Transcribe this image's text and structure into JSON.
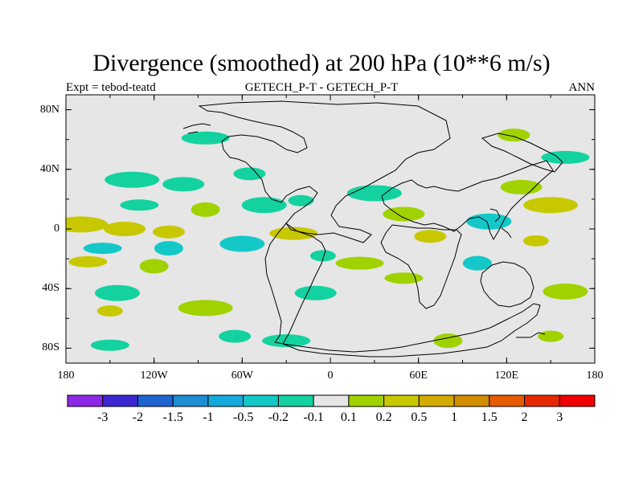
{
  "title": "Divergence (smoothed) at 200 hPa (10**6 m/s)",
  "subtitle_left": "Expt = tebod-teatd",
  "subtitle_center": "GETECH_P-T - GETECH_P-T",
  "subtitle_right": "ANN",
  "map": {
    "projection": "cylindrical equidistant",
    "lon_range": [
      -180,
      180
    ],
    "lat_range": [
      -90,
      90
    ],
    "background_color": "#e6e6e6",
    "coast_color": "#000000",
    "y_tick_labels": [
      "80N",
      "40N",
      "0",
      "40S",
      "80S"
    ],
    "y_tick_values": [
      80,
      40,
      0,
      -40,
      -80
    ],
    "x_tick_labels": [
      "180",
      "120W",
      "60W",
      "0",
      "60E",
      "120E",
      "180"
    ],
    "x_tick_values": [
      -180,
      -120,
      -60,
      0,
      60,
      120,
      180
    ]
  },
  "colorbar": {
    "labels": [
      "-3",
      "-2",
      "-1.5",
      "-1",
      "-0.5",
      "-0.2",
      "-0.1",
      "0.1",
      "0.2",
      "0.5",
      "1",
      "1.5",
      "2",
      "3"
    ],
    "colors": [
      "#8c28e6",
      "#3c28d2",
      "#1e64d2",
      "#1e8cd2",
      "#14aadc",
      "#14c8c8",
      "#14d2a0",
      "#e6e6e6",
      "#a0d200",
      "#c8c800",
      "#d2aa00",
      "#d28c00",
      "#e65a00",
      "#e62800",
      "#f00000"
    ]
  },
  "chart_data": {
    "type": "heatmap",
    "variable": "Divergence (smoothed) at 200 hPa",
    "units": "10**6 m/s",
    "levels": [
      -3,
      -2,
      -1.5,
      -1,
      -0.5,
      -0.2,
      -0.1,
      0.1,
      0.2,
      0.5,
      1,
      1.5,
      2,
      3
    ],
    "regions": [
      {
        "lon": -135,
        "lat": 33,
        "value": -0.15
      },
      {
        "lon": -100,
        "lat": 30,
        "value": -0.15
      },
      {
        "lon": -55,
        "lat": 37,
        "value": -0.15
      },
      {
        "lon": -85,
        "lat": 61,
        "value": -0.15
      },
      {
        "lon": -130,
        "lat": 16,
        "value": -0.15
      },
      {
        "lon": -85,
        "lat": 13,
        "value": 0.15
      },
      {
        "lon": -45,
        "lat": 16,
        "value": -0.15
      },
      {
        "lon": -20,
        "lat": 19,
        "value": -0.15
      },
      {
        "lon": -170,
        "lat": 3,
        "value": 0.35
      },
      {
        "lon": -140,
        "lat": 0,
        "value": 0.35
      },
      {
        "lon": -110,
        "lat": -2,
        "value": 0.35
      },
      {
        "lon": -25,
        "lat": -3,
        "value": 0.35
      },
      {
        "lon": -155,
        "lat": -13,
        "value": -0.35
      },
      {
        "lon": -110,
        "lat": -13,
        "value": -0.35
      },
      {
        "lon": -60,
        "lat": -10,
        "value": -0.35
      },
      {
        "lon": -5,
        "lat": -18,
        "value": -0.15
      },
      {
        "lon": 30,
        "lat": 24,
        "value": -0.15
      },
      {
        "lon": 50,
        "lat": 10,
        "value": 0.15
      },
      {
        "lon": 68,
        "lat": -5,
        "value": 0.35
      },
      {
        "lon": 20,
        "lat": -23,
        "value": 0.15
      },
      {
        "lon": 50,
        "lat": -33,
        "value": 0.15
      },
      {
        "lon": 100,
        "lat": -23,
        "value": -0.35
      },
      {
        "lon": 108,
        "lat": 5,
        "value": -0.35
      },
      {
        "lon": 140,
        "lat": -8,
        "value": 0.35
      },
      {
        "lon": 150,
        "lat": 16,
        "value": 0.35
      },
      {
        "lon": 130,
        "lat": 28,
        "value": 0.15
      },
      {
        "lon": 125,
        "lat": 63,
        "value": 0.15
      },
      {
        "lon": 160,
        "lat": 48,
        "value": -0.15
      },
      {
        "lon": -165,
        "lat": -22,
        "value": 0.35
      },
      {
        "lon": -120,
        "lat": -25,
        "value": 0.15
      },
      {
        "lon": -145,
        "lat": -43,
        "value": -0.15
      },
      {
        "lon": -150,
        "lat": -55,
        "value": 0.35
      },
      {
        "lon": -85,
        "lat": -53,
        "value": 0.15
      },
      {
        "lon": -10,
        "lat": -43,
        "value": -0.15
      },
      {
        "lon": -65,
        "lat": -72,
        "value": -0.15
      },
      {
        "lon": -30,
        "lat": -75,
        "value": -0.15
      },
      {
        "lon": -150,
        "lat": -78,
        "value": -0.15
      },
      {
        "lon": 80,
        "lat": -75,
        "value": 0.15
      },
      {
        "lon": 160,
        "lat": -42,
        "value": 0.15
      },
      {
        "lon": 150,
        "lat": -72,
        "value": 0.15
      }
    ]
  }
}
